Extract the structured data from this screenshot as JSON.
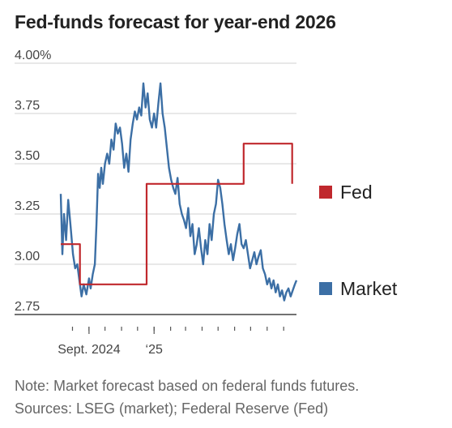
{
  "title": "Fed-funds forecast for year-end 2026",
  "notes": {
    "line1": "Note: Market forecast based on federal funds futures.",
    "line2": "Sources: LSEG (market); Federal Reserve (Fed)"
  },
  "chart_data": {
    "type": "line",
    "title": "Fed-funds forecast for year-end 2026",
    "ylim": [
      2.75,
      4.0
    ],
    "yticks": [
      "4.00%",
      "3.75",
      "3.50",
      "3.25",
      "3.00",
      "2.75"
    ],
    "ytick_values": [
      4.0,
      3.75,
      3.5,
      3.25,
      3.0,
      2.75
    ],
    "xtick_labels": [
      {
        "label": "Sept. 2024",
        "x": "2024-09"
      },
      {
        "label": "‘25",
        "x": "2025-01"
      }
    ],
    "xlim": [
      "2024-07-10",
      "2025-09-25"
    ],
    "grid": "horizontal",
    "legend": "right",
    "series": [
      {
        "name": "Fed",
        "color": "#c0282d",
        "step": true,
        "points": [
          [
            "2024-07-10",
            3.1
          ],
          [
            "2024-08-15",
            3.1
          ],
          [
            "2024-08-15",
            2.9
          ],
          [
            "2024-12-18",
            2.9
          ],
          [
            "2024-12-18",
            3.4
          ],
          [
            "2025-06-18",
            3.4
          ],
          [
            "2025-06-18",
            3.6
          ],
          [
            "2025-09-17",
            3.6
          ],
          [
            "2025-09-17",
            3.4
          ]
        ]
      },
      {
        "name": "Market",
        "color": "#3c6fa5",
        "step": false,
        "points": [
          [
            "2024-07-10",
            3.35
          ],
          [
            "2024-07-13",
            3.05
          ],
          [
            "2024-07-16",
            3.25
          ],
          [
            "2024-07-20",
            3.12
          ],
          [
            "2024-07-24",
            3.32
          ],
          [
            "2024-07-28",
            3.2
          ],
          [
            "2024-08-02",
            3.05
          ],
          [
            "2024-08-06",
            2.98
          ],
          [
            "2024-08-10",
            3.0
          ],
          [
            "2024-08-14",
            2.92
          ],
          [
            "2024-08-18",
            2.84
          ],
          [
            "2024-08-22",
            2.9
          ],
          [
            "2024-08-27",
            2.85
          ],
          [
            "2024-09-01",
            2.93
          ],
          [
            "2024-09-04",
            2.88
          ],
          [
            "2024-09-08",
            2.95
          ],
          [
            "2024-09-12",
            3.0
          ],
          [
            "2024-09-15",
            3.2
          ],
          [
            "2024-09-18",
            3.45
          ],
          [
            "2024-09-21",
            3.38
          ],
          [
            "2024-09-24",
            3.48
          ],
          [
            "2024-09-27",
            3.4
          ],
          [
            "2024-10-01",
            3.5
          ],
          [
            "2024-10-05",
            3.55
          ],
          [
            "2024-10-09",
            3.5
          ],
          [
            "2024-10-13",
            3.62
          ],
          [
            "2024-10-17",
            3.57
          ],
          [
            "2024-10-21",
            3.7
          ],
          [
            "2024-10-25",
            3.65
          ],
          [
            "2024-10-29",
            3.68
          ],
          [
            "2024-11-02",
            3.6
          ],
          [
            "2024-11-06",
            3.48
          ],
          [
            "2024-11-10",
            3.55
          ],
          [
            "2024-11-14",
            3.46
          ],
          [
            "2024-11-18",
            3.62
          ],
          [
            "2024-11-22",
            3.7
          ],
          [
            "2024-11-26",
            3.76
          ],
          [
            "2024-11-30",
            3.72
          ],
          [
            "2024-12-04",
            3.78
          ],
          [
            "2024-12-08",
            3.74
          ],
          [
            "2024-12-12",
            3.9
          ],
          [
            "2024-12-16",
            3.78
          ],
          [
            "2024-12-20",
            3.85
          ],
          [
            "2024-12-24",
            3.72
          ],
          [
            "2024-12-28",
            3.68
          ],
          [
            "2025-01-01",
            3.75
          ],
          [
            "2025-01-05",
            3.68
          ],
          [
            "2025-01-09",
            3.8
          ],
          [
            "2025-01-13",
            3.9
          ],
          [
            "2025-01-17",
            3.75
          ],
          [
            "2025-01-21",
            3.68
          ],
          [
            "2025-01-25",
            3.58
          ],
          [
            "2025-01-29",
            3.48
          ],
          [
            "2025-02-02",
            3.42
          ],
          [
            "2025-02-06",
            3.38
          ],
          [
            "2025-02-10",
            3.35
          ],
          [
            "2025-02-14",
            3.43
          ],
          [
            "2025-02-18",
            3.3
          ],
          [
            "2025-02-22",
            3.25
          ],
          [
            "2025-02-26",
            3.22
          ],
          [
            "2025-03-02",
            3.18
          ],
          [
            "2025-03-06",
            3.28
          ],
          [
            "2025-03-10",
            3.14
          ],
          [
            "2025-03-14",
            3.2
          ],
          [
            "2025-03-18",
            3.05
          ],
          [
            "2025-03-22",
            3.1
          ],
          [
            "2025-03-26",
            3.18
          ],
          [
            "2025-03-30",
            3.08
          ],
          [
            "2025-04-03",
            3.0
          ],
          [
            "2025-04-07",
            3.12
          ],
          [
            "2025-04-11",
            3.05
          ],
          [
            "2025-04-15",
            3.2
          ],
          [
            "2025-04-19",
            3.12
          ],
          [
            "2025-04-23",
            3.25
          ],
          [
            "2025-04-27",
            3.3
          ],
          [
            "2025-05-01",
            3.42
          ],
          [
            "2025-05-05",
            3.38
          ],
          [
            "2025-05-09",
            3.3
          ],
          [
            "2025-05-13",
            3.2
          ],
          [
            "2025-05-17",
            3.12
          ],
          [
            "2025-05-21",
            3.05
          ],
          [
            "2025-05-25",
            3.1
          ],
          [
            "2025-05-29",
            3.02
          ],
          [
            "2025-06-02",
            3.08
          ],
          [
            "2025-06-06",
            3.15
          ],
          [
            "2025-06-10",
            3.2
          ],
          [
            "2025-06-14",
            3.1
          ],
          [
            "2025-06-18",
            3.08
          ],
          [
            "2025-06-22",
            3.12
          ],
          [
            "2025-06-26",
            3.05
          ],
          [
            "2025-06-30",
            2.98
          ],
          [
            "2025-07-04",
            3.02
          ],
          [
            "2025-07-08",
            3.06
          ],
          [
            "2025-07-12",
            3.0
          ],
          [
            "2025-07-16",
            3.04
          ],
          [
            "2025-07-20",
            3.07
          ],
          [
            "2025-07-24",
            2.98
          ],
          [
            "2025-07-28",
            2.95
          ],
          [
            "2025-08-01",
            2.9
          ],
          [
            "2025-08-05",
            2.93
          ],
          [
            "2025-08-09",
            2.88
          ],
          [
            "2025-08-13",
            2.92
          ],
          [
            "2025-08-17",
            2.86
          ],
          [
            "2025-08-21",
            2.9
          ],
          [
            "2025-08-25",
            2.84
          ],
          [
            "2025-08-29",
            2.87
          ],
          [
            "2025-09-02",
            2.82
          ],
          [
            "2025-09-06",
            2.86
          ],
          [
            "2025-09-10",
            2.88
          ],
          [
            "2025-09-14",
            2.84
          ],
          [
            "2025-09-18",
            2.87
          ],
          [
            "2025-09-22",
            2.9
          ],
          [
            "2025-09-25",
            2.92
          ]
        ]
      }
    ]
  }
}
